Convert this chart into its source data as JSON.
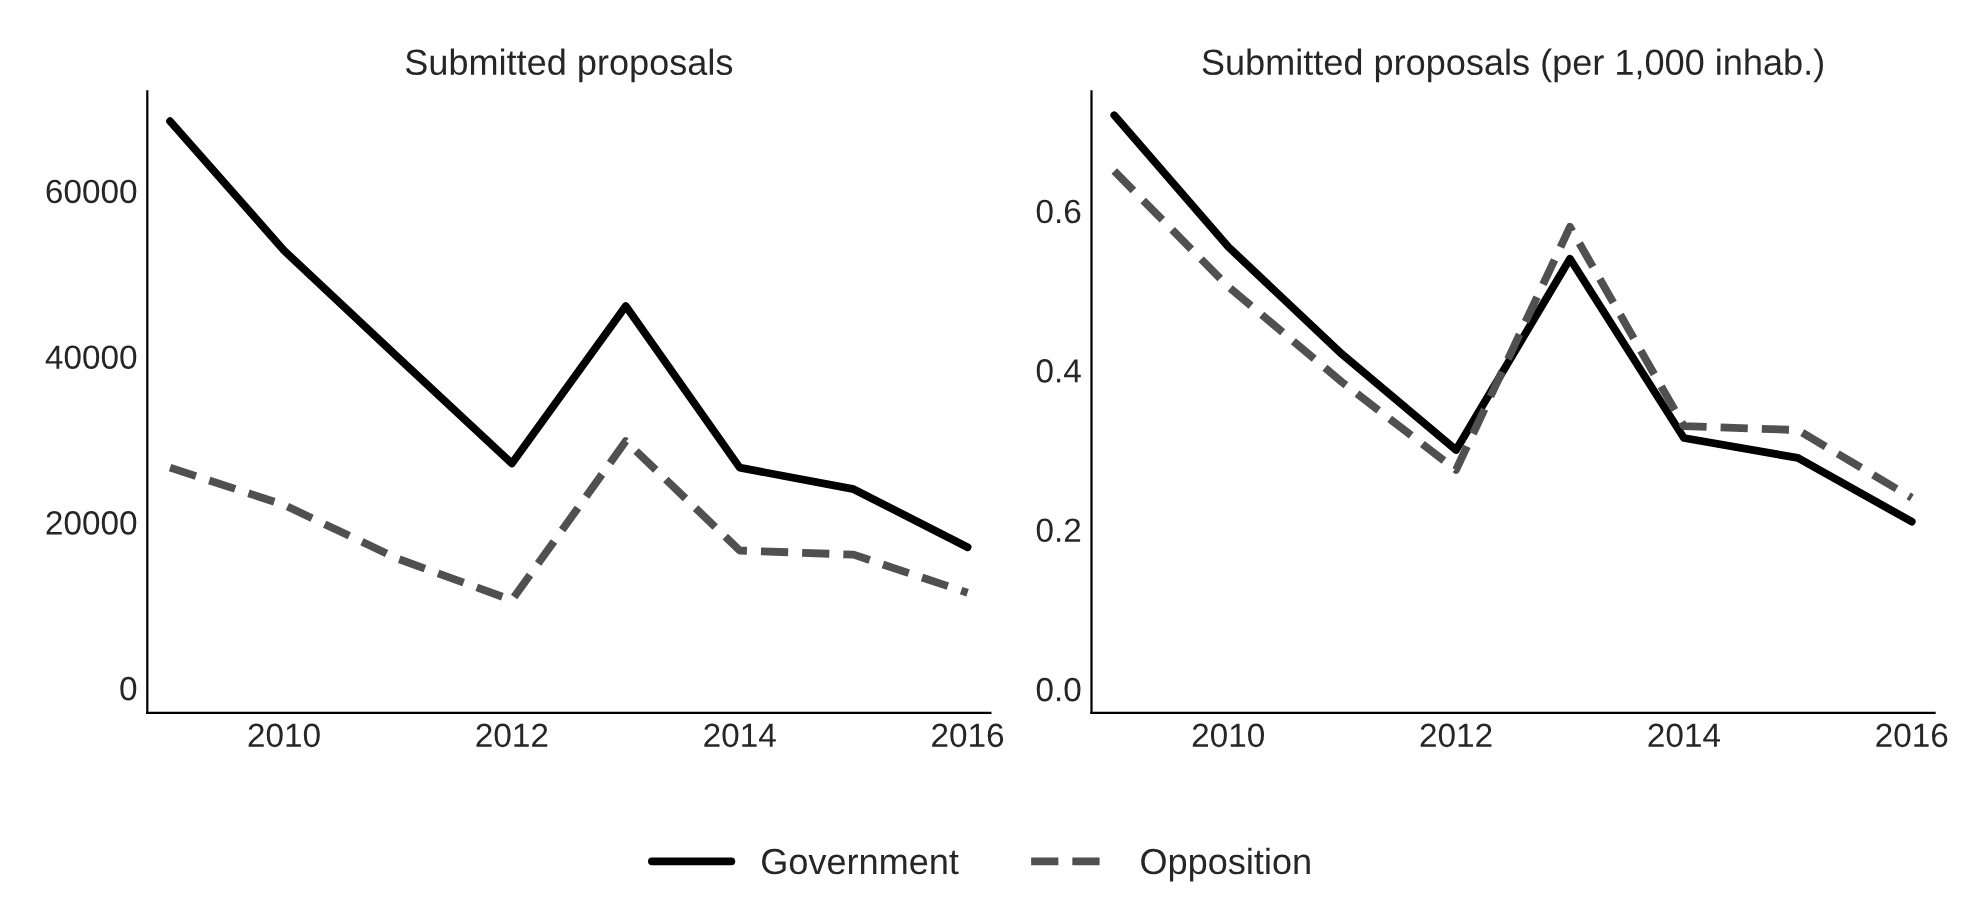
{
  "chart_data": [
    {
      "type": "line",
      "title": "Submitted proposals",
      "x": [
        2009,
        2010,
        2011,
        2012,
        2013,
        2014,
        2015,
        2016
      ],
      "xlim": [
        2008.8,
        2016.2
      ],
      "xticks": [
        2010,
        2012,
        2014,
        2016
      ],
      "ylim": [
        -3000,
        72000
      ],
      "yticks": [
        0,
        20000,
        40000,
        60000
      ],
      "grid": false,
      "legend": "bottom",
      "series": [
        {
          "name": "Government",
          "color": "#000000",
          "line_style": "solid",
          "values": [
            68400,
            52800,
            39900,
            27100,
            46100,
            26600,
            24000,
            17000
          ]
        },
        {
          "name": "Opposition",
          "color": "#505050",
          "line_style": "dashed",
          "values": [
            26600,
            22100,
            15600,
            10600,
            29800,
            16600,
            16100,
            11500
          ]
        }
      ]
    },
    {
      "type": "line",
      "title": "Submitted proposals (per 1,000 inhab.)",
      "x": [
        2009,
        2010,
        2011,
        2012,
        2013,
        2014,
        2015,
        2016
      ],
      "xlim": [
        2008.8,
        2016.2
      ],
      "xticks": [
        2010,
        2012,
        2014,
        2016
      ],
      "ylim": [
        -0.03,
        0.75
      ],
      "yticks": [
        {
          "value": 0,
          "label": "0.0"
        },
        0.2,
        0.4,
        0.6
      ],
      "grid": false,
      "series": [
        {
          "color": "#000000",
          "line_style": "solid",
          "values": [
            0.72,
            0.555,
            0.42,
            0.3,
            0.54,
            0.315,
            0.29,
            0.21
          ]
        },
        {
          "color": "#505050",
          "line_style": "dashed",
          "values": [
            0.65,
            0.505,
            0.385,
            0.275,
            0.58,
            0.33,
            0.325,
            0.24
          ]
        }
      ]
    }
  ]
}
